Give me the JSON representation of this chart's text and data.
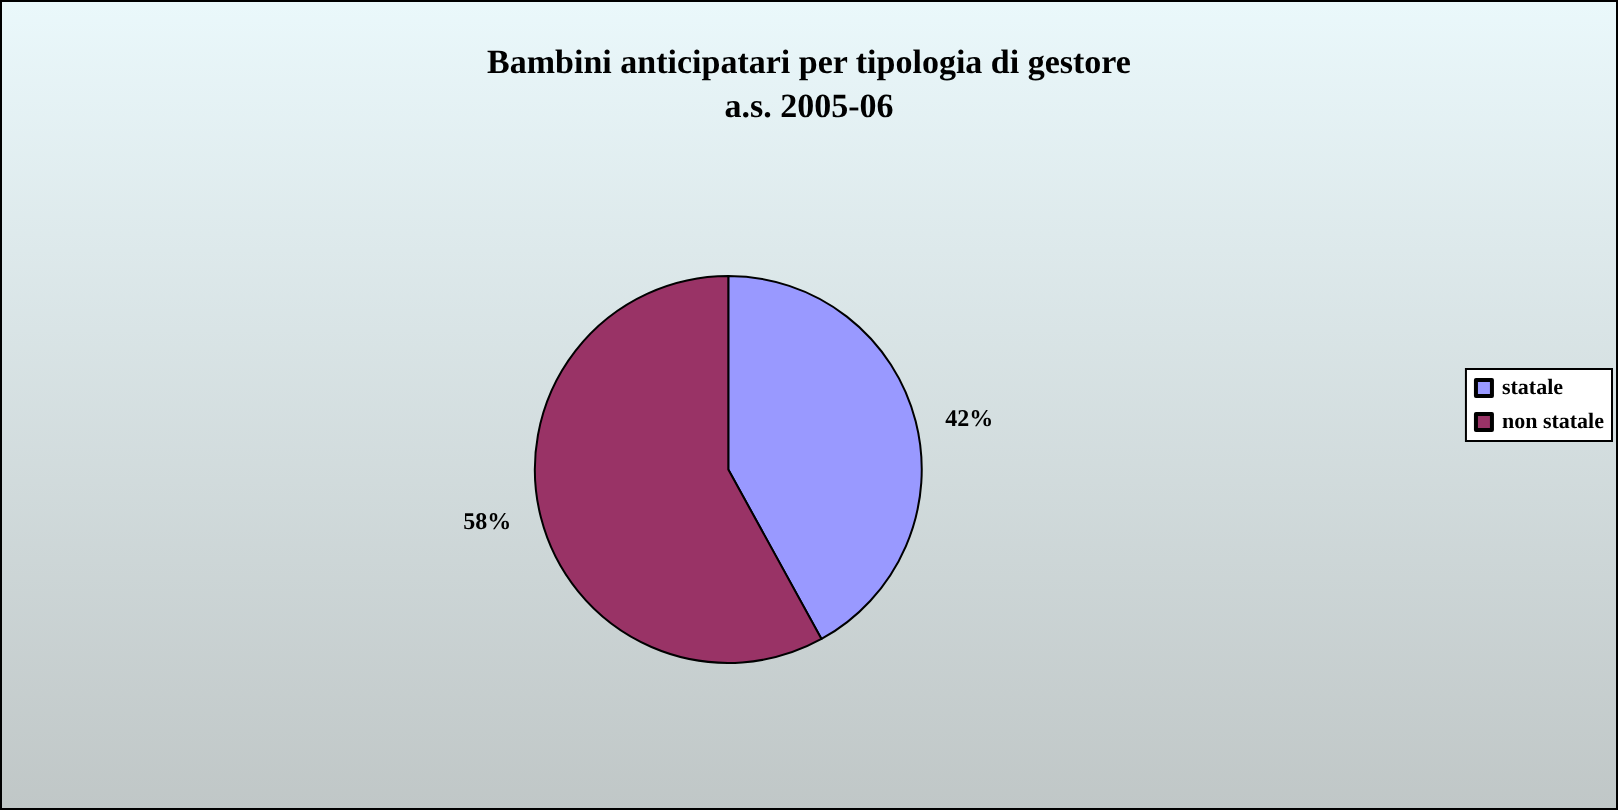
{
  "chart_data": {
    "type": "pie",
    "title": "Bambini anticipatari per tipologia di gestore\na.s. 2005-06",
    "categories": [
      "statale",
      "non statale"
    ],
    "values": [
      42,
      58
    ],
    "colors": [
      "#9999ff",
      "#993366"
    ],
    "value_labels": [
      "42%",
      "58%"
    ],
    "legend": "right"
  }
}
